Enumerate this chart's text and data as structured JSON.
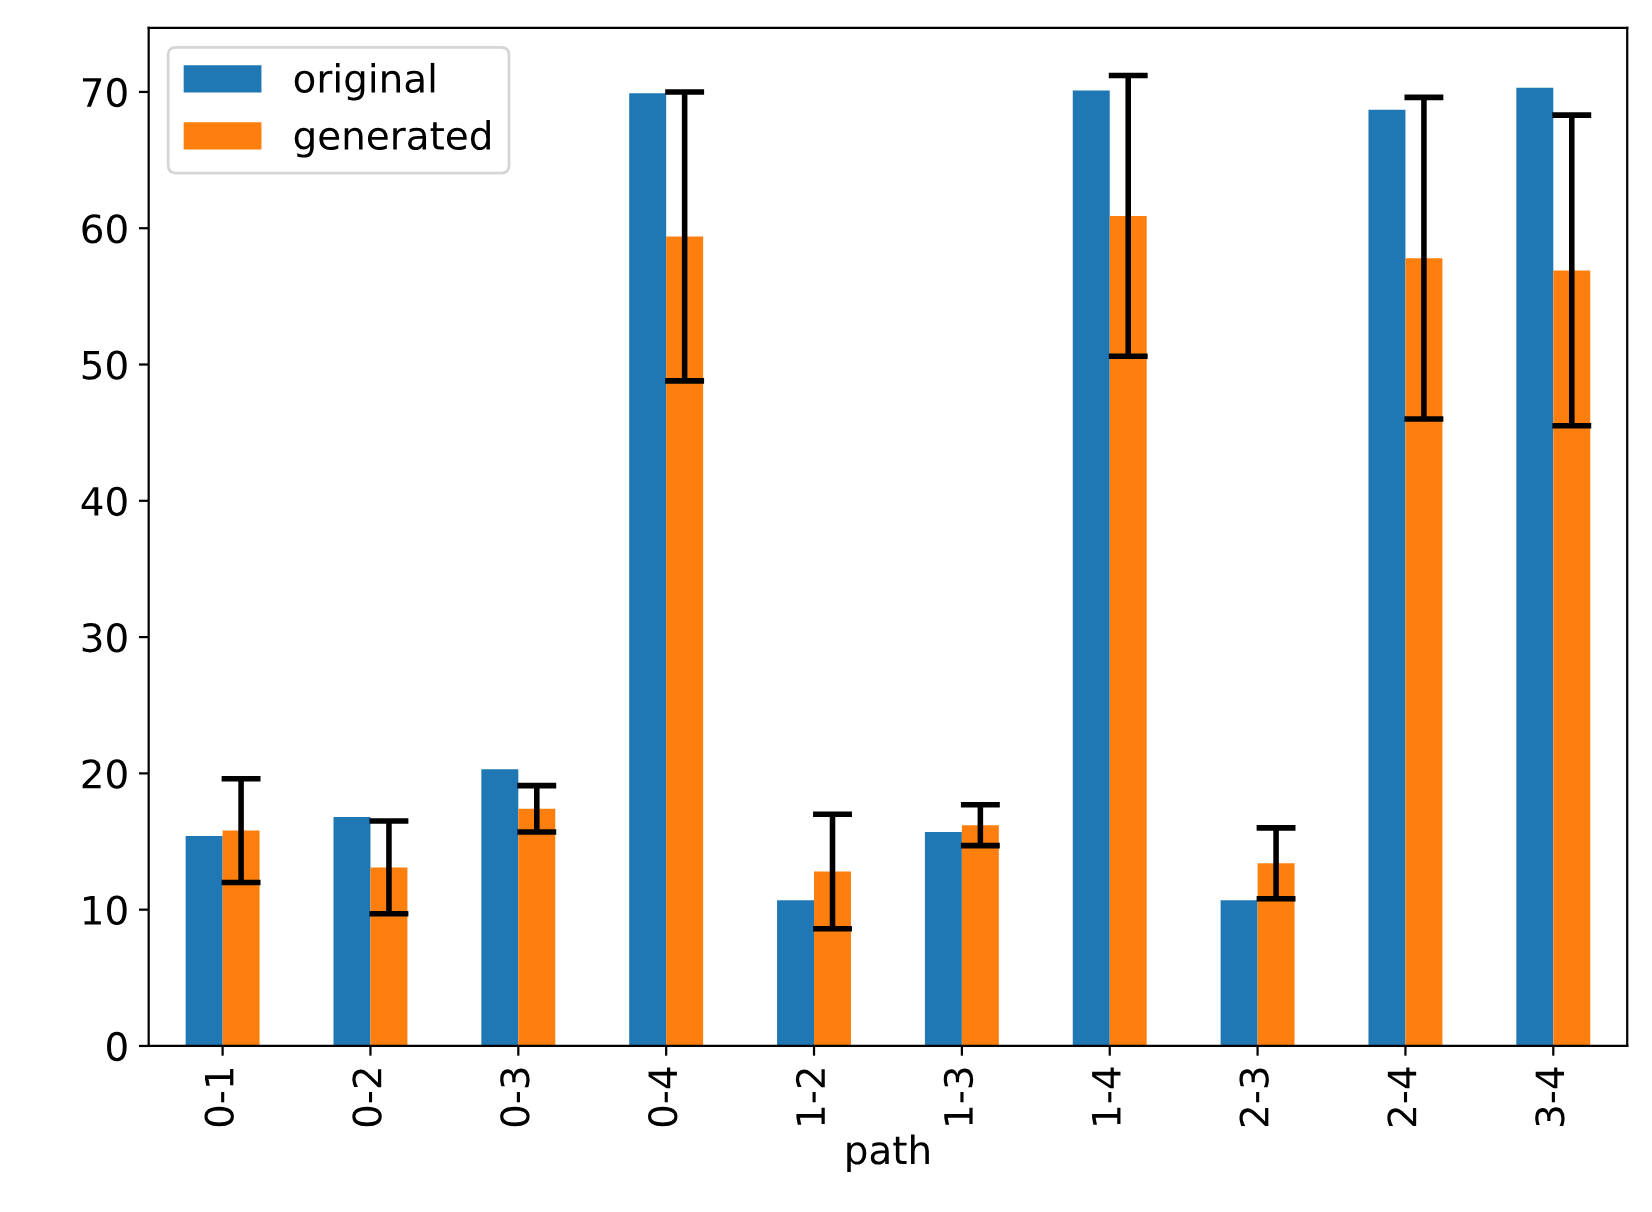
{
  "chart_data": {
    "type": "bar",
    "xlabel": "path",
    "categories": [
      "0-1",
      "0-2",
      "0-3",
      "0-4",
      "1-2",
      "1-3",
      "1-4",
      "2-3",
      "2-4",
      "3-4"
    ],
    "series": [
      {
        "name": "original",
        "color": "#1f77b4",
        "values": [
          15.4,
          16.8,
          20.3,
          69.9,
          10.7,
          15.7,
          70.1,
          10.7,
          68.7,
          70.3
        ]
      },
      {
        "name": "generated",
        "color": "#ff7f0e",
        "values": [
          15.8,
          13.1,
          17.4,
          59.4,
          12.8,
          16.2,
          60.9,
          13.4,
          57.8,
          56.9
        ],
        "errors": [
          3.8,
          3.4,
          1.7,
          10.6,
          4.2,
          1.5,
          10.3,
          2.6,
          11.8,
          11.4
        ]
      }
    ],
    "ylim": [
      0,
      74.7
    ],
    "yticks": [
      0,
      10,
      20,
      30,
      40,
      50,
      60,
      70
    ],
    "legend": "top left",
    "grid": false
  }
}
